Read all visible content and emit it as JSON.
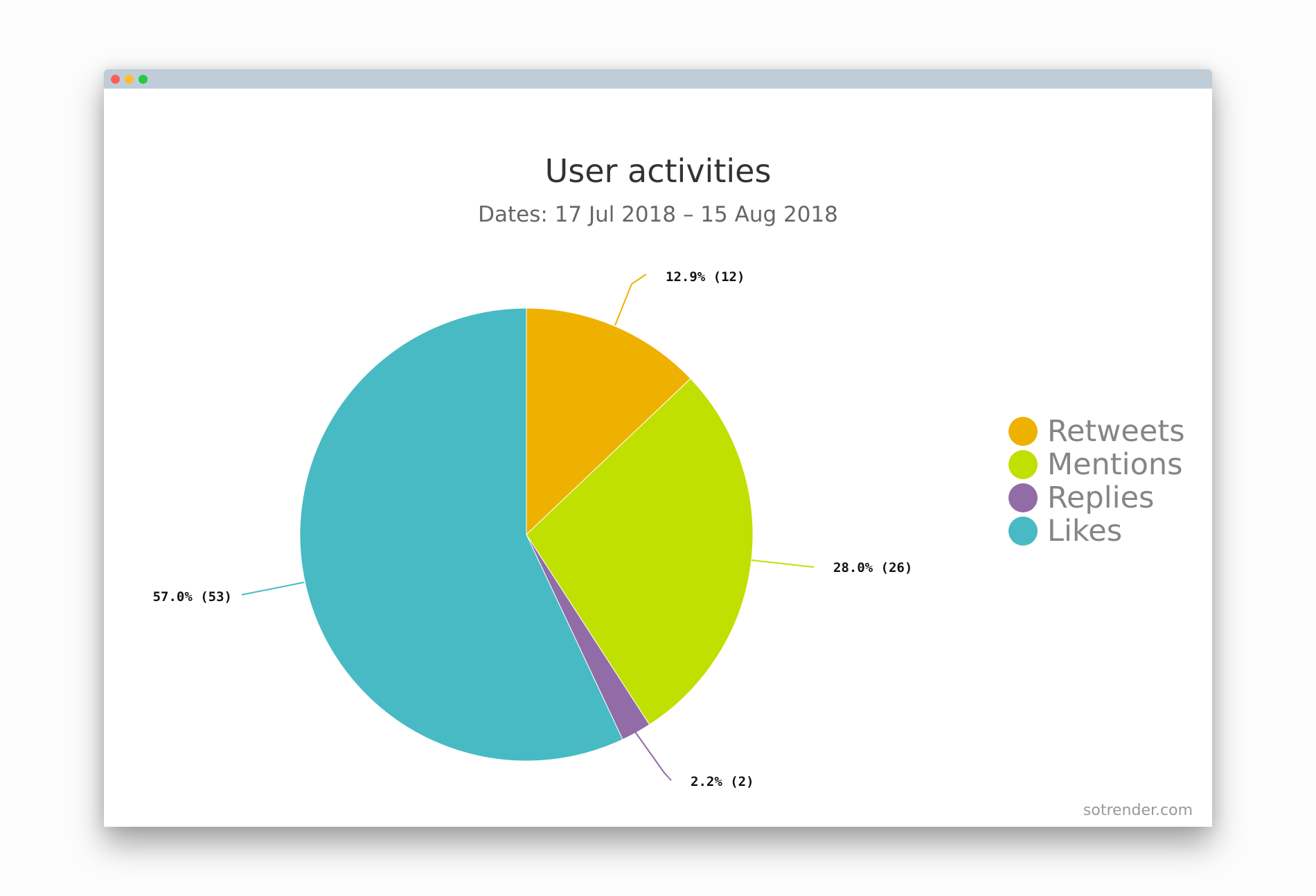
{
  "window": {
    "controls": [
      {
        "name": "close",
        "color": "#ff5f57"
      },
      {
        "name": "minimize",
        "color": "#ffbd2e"
      },
      {
        "name": "maximize",
        "color": "#28c940"
      }
    ]
  },
  "chart_data": {
    "type": "pie",
    "title": "User activities",
    "subtitle": "Dates: 17 Jul 2018 – 15 Aug 2018",
    "categories": [
      "Retweets",
      "Mentions",
      "Replies",
      "Likes"
    ],
    "values": [
      12,
      26,
      2,
      53
    ],
    "percentages": [
      12.9,
      28.0,
      2.2,
      57.0
    ],
    "data_labels": [
      "12.9% (12)",
      "28.0% (26)",
      "2.2% (2)",
      "57.0% (53)"
    ],
    "colors": [
      "#efb100",
      "#bfe000",
      "#916ca6",
      "#48bac3"
    ],
    "legend_placement": "right"
  },
  "watermark": "sotrender.com"
}
